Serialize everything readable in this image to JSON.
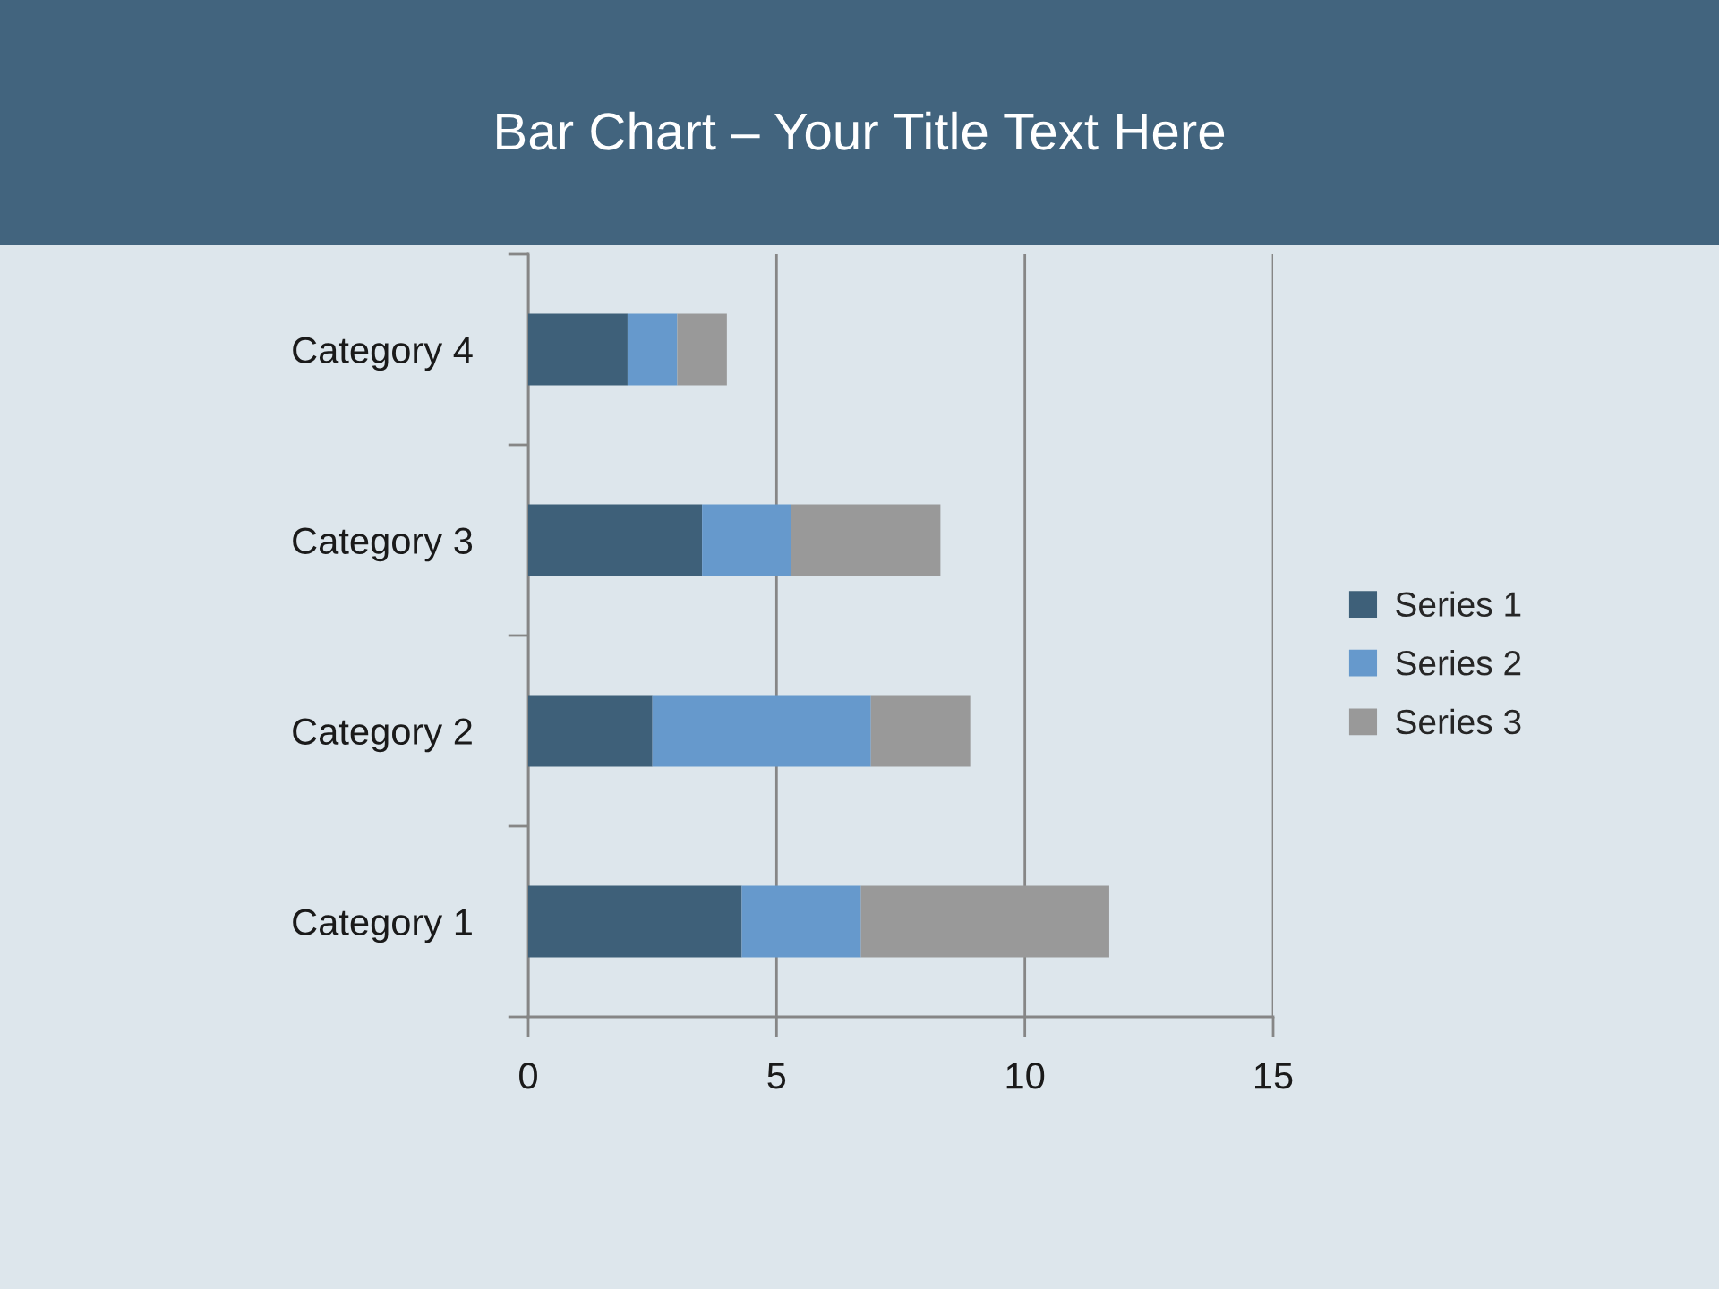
{
  "chart_data": {
    "type": "bar",
    "title": "Bar Chart – Your Title Text Here",
    "orientation": "horizontal",
    "stacked": true,
    "categories": [
      "Category 4",
      "Category 3",
      "Category 2",
      "Category 1"
    ],
    "series": [
      {
        "name": "Series 1",
        "color": "#3e6079",
        "values": [
          2,
          3.5,
          2.5,
          4.3
        ]
      },
      {
        "name": "Series 2",
        "color": "#6699cc",
        "values": [
          1,
          1.8,
          4.4,
          2.4
        ]
      },
      {
        "name": "Series 3",
        "color": "#999999",
        "values": [
          1,
          3,
          2,
          5
        ]
      }
    ],
    "xlim": [
      0,
      15
    ],
    "xticks": [
      0,
      5,
      10,
      15
    ],
    "grid": "x",
    "legend": "right"
  }
}
